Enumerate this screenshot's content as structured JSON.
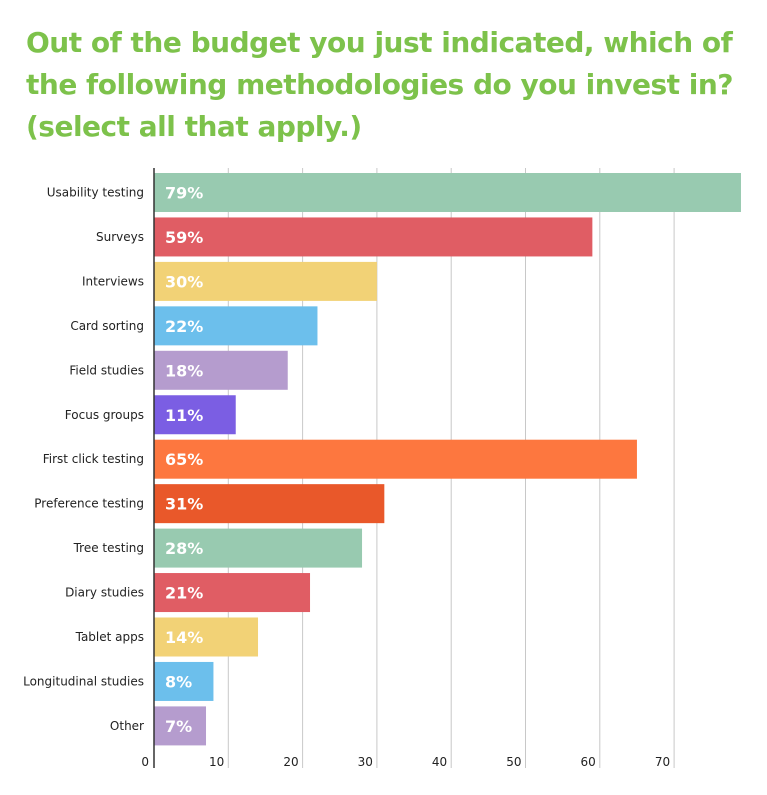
{
  "title": "Out of the budget you just indicated, which of the following methodologies do you invest in? (select all that apply.)",
  "colors": {
    "title": "#7dc24b",
    "grid": "#c8c8c8",
    "axis": "#333333"
  },
  "chart_data": {
    "type": "bar",
    "orientation": "horizontal",
    "title": "Out of the budget you just indicated, which of the following methodologies do you invest in? (select all that apply.)",
    "xlabel": "",
    "ylabel": "",
    "xlim": [
      0,
      80
    ],
    "xticks": [
      0,
      10,
      20,
      30,
      40,
      50,
      60,
      70
    ],
    "grid": true,
    "legend": "none",
    "categories": [
      "Usability testing",
      "Surveys",
      "Interviews",
      "Card sorting",
      "Field studies",
      "Focus groups",
      "First click testing",
      "Preference testing",
      "Tree testing",
      "Diary studies",
      "Tablet apps",
      "Longitudinal studies",
      "Other"
    ],
    "values": [
      79,
      59,
      30,
      22,
      18,
      11,
      65,
      31,
      28,
      21,
      14,
      8,
      7
    ],
    "data_labels": [
      "79%",
      "59%",
      "30%",
      "22%",
      "18%",
      "11%",
      "65%",
      "31%",
      "28%",
      "21%",
      "14%",
      "8%",
      "7%"
    ],
    "bar_colors": [
      "#98cab0",
      "#e05d64",
      "#f2d276",
      "#6cbfec",
      "#b59cce",
      "#7b5ee3",
      "#fd773f",
      "#e9582a",
      "#98cab0",
      "#e05d64",
      "#f2d276",
      "#6cbfec",
      "#b59cce"
    ]
  }
}
